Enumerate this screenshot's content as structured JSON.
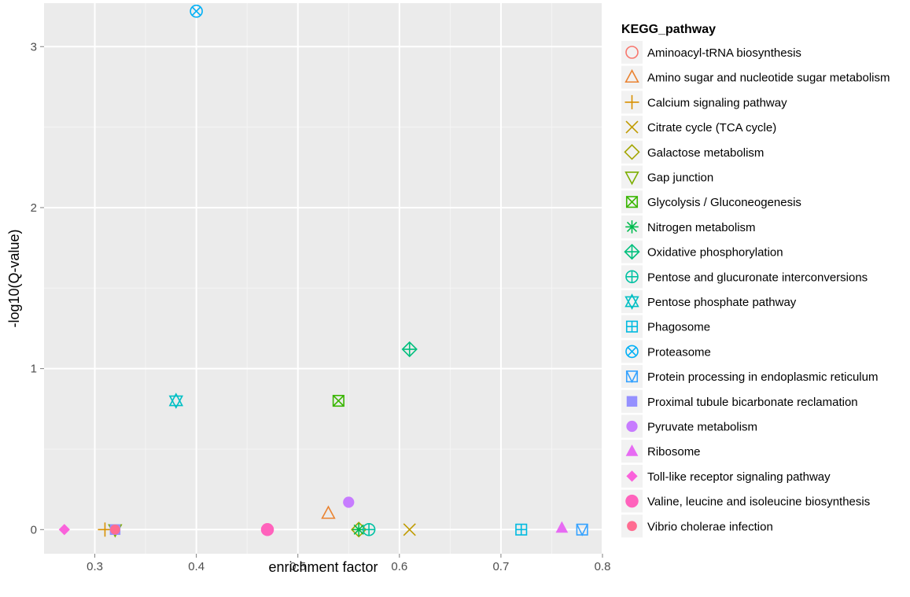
{
  "chart_data": {
    "type": "scatter",
    "xlabel": "enrichment factor",
    "ylabel": "-log10(Q-value)",
    "xlim": [
      0.25,
      0.8
    ],
    "ylim": [
      -0.15,
      3.27
    ],
    "x_ticks": [
      0.3,
      0.4,
      0.5,
      0.6,
      0.7,
      0.8
    ],
    "x_tick_labels": [
      "0.3",
      "0.4",
      "0.5",
      "0.6",
      "0.7",
      "0.8"
    ],
    "y_ticks": [
      0,
      1,
      2,
      3
    ],
    "y_tick_labels": [
      "0",
      "1",
      "2",
      "3"
    ],
    "grid": true,
    "background": "#ebebeb",
    "legend": {
      "title": "KEGG_pathway",
      "placement": "right"
    },
    "series": [
      {
        "name": "Aminoacyl-tRNA biosynthesis",
        "shape": "circle-open",
        "color": "#F8766D",
        "points": []
      },
      {
        "name": "Amino sugar and nucleotide sugar metabolism",
        "shape": "triangle-open",
        "color": "#EA8331",
        "points": [
          [
            0.53,
            0.1
          ]
        ]
      },
      {
        "name": "Calcium signaling pathway",
        "shape": "plus",
        "color": "#D89000",
        "points": [
          [
            0.31,
            0.0
          ]
        ]
      },
      {
        "name": "Citrate cycle (TCA cycle)",
        "shape": "cross",
        "color": "#C09B00",
        "points": [
          [
            0.61,
            0.0
          ]
        ]
      },
      {
        "name": "Galactose metabolism",
        "shape": "diamond-open",
        "color": "#A3A500",
        "points": [
          [
            0.56,
            0.0
          ]
        ]
      },
      {
        "name": "Gap junction",
        "shape": "triangle-down-open",
        "color": "#7CAE00",
        "points": [
          [
            0.32,
            0.0
          ]
        ]
      },
      {
        "name": "Glycolysis / Gluconeogenesis",
        "shape": "square-cross",
        "color": "#39B600",
        "points": [
          [
            0.54,
            0.8
          ]
        ]
      },
      {
        "name": "Nitrogen metabolism",
        "shape": "asterisk",
        "color": "#00BB4E",
        "points": [
          [
            0.56,
            0.0
          ]
        ]
      },
      {
        "name": "Oxidative phosphorylation",
        "shape": "diamond-plus",
        "color": "#00BF7D",
        "points": [
          [
            0.61,
            1.12
          ]
        ]
      },
      {
        "name": "Pentose and glucuronate interconversions",
        "shape": "circle-plus",
        "color": "#00C1A3",
        "points": [
          [
            0.57,
            0.0
          ]
        ]
      },
      {
        "name": "Pentose phosphate pathway",
        "shape": "star-of-david",
        "color": "#00BFC4",
        "points": [
          [
            0.38,
            0.8
          ]
        ]
      },
      {
        "name": "Phagosome",
        "shape": "square-plus",
        "color": "#00BAE0",
        "points": [
          [
            0.72,
            0.0
          ]
        ]
      },
      {
        "name": "Proteasome",
        "shape": "circle-cross",
        "color": "#00B0F6",
        "points": [
          [
            0.4,
            3.22
          ]
        ]
      },
      {
        "name": "Protein processing in endoplasmic reticulum",
        "shape": "square-triangle",
        "color": "#35A2FF",
        "points": [
          [
            0.78,
            0.0
          ]
        ]
      },
      {
        "name": "Proximal tubule bicarbonate reclamation",
        "shape": "square-filled",
        "color": "#9590FF",
        "points": [
          [
            0.32,
            0.0
          ]
        ]
      },
      {
        "name": "Pyruvate metabolism",
        "shape": "circle-filled",
        "color": "#C77CFF",
        "points": [
          [
            0.55,
            0.17
          ]
        ]
      },
      {
        "name": "Ribosome",
        "shape": "triangle-filled",
        "color": "#E76BF3",
        "points": [
          [
            0.76,
            0.01
          ]
        ]
      },
      {
        "name": "Toll-like receptor signaling pathway",
        "shape": "diamond-filled",
        "color": "#FA62DB",
        "points": [
          [
            0.27,
            0.0
          ]
        ]
      },
      {
        "name": "Valine, leucine and isoleucine biosynthesis",
        "shape": "circle-filled-large",
        "color": "#FF62BC",
        "points": [
          [
            0.47,
            0.0
          ]
        ]
      },
      {
        "name": "Vibrio cholerae infection",
        "shape": "circle-filled-small",
        "color": "#FF6C91",
        "points": [
          [
            0.32,
            0.0
          ]
        ]
      }
    ]
  }
}
